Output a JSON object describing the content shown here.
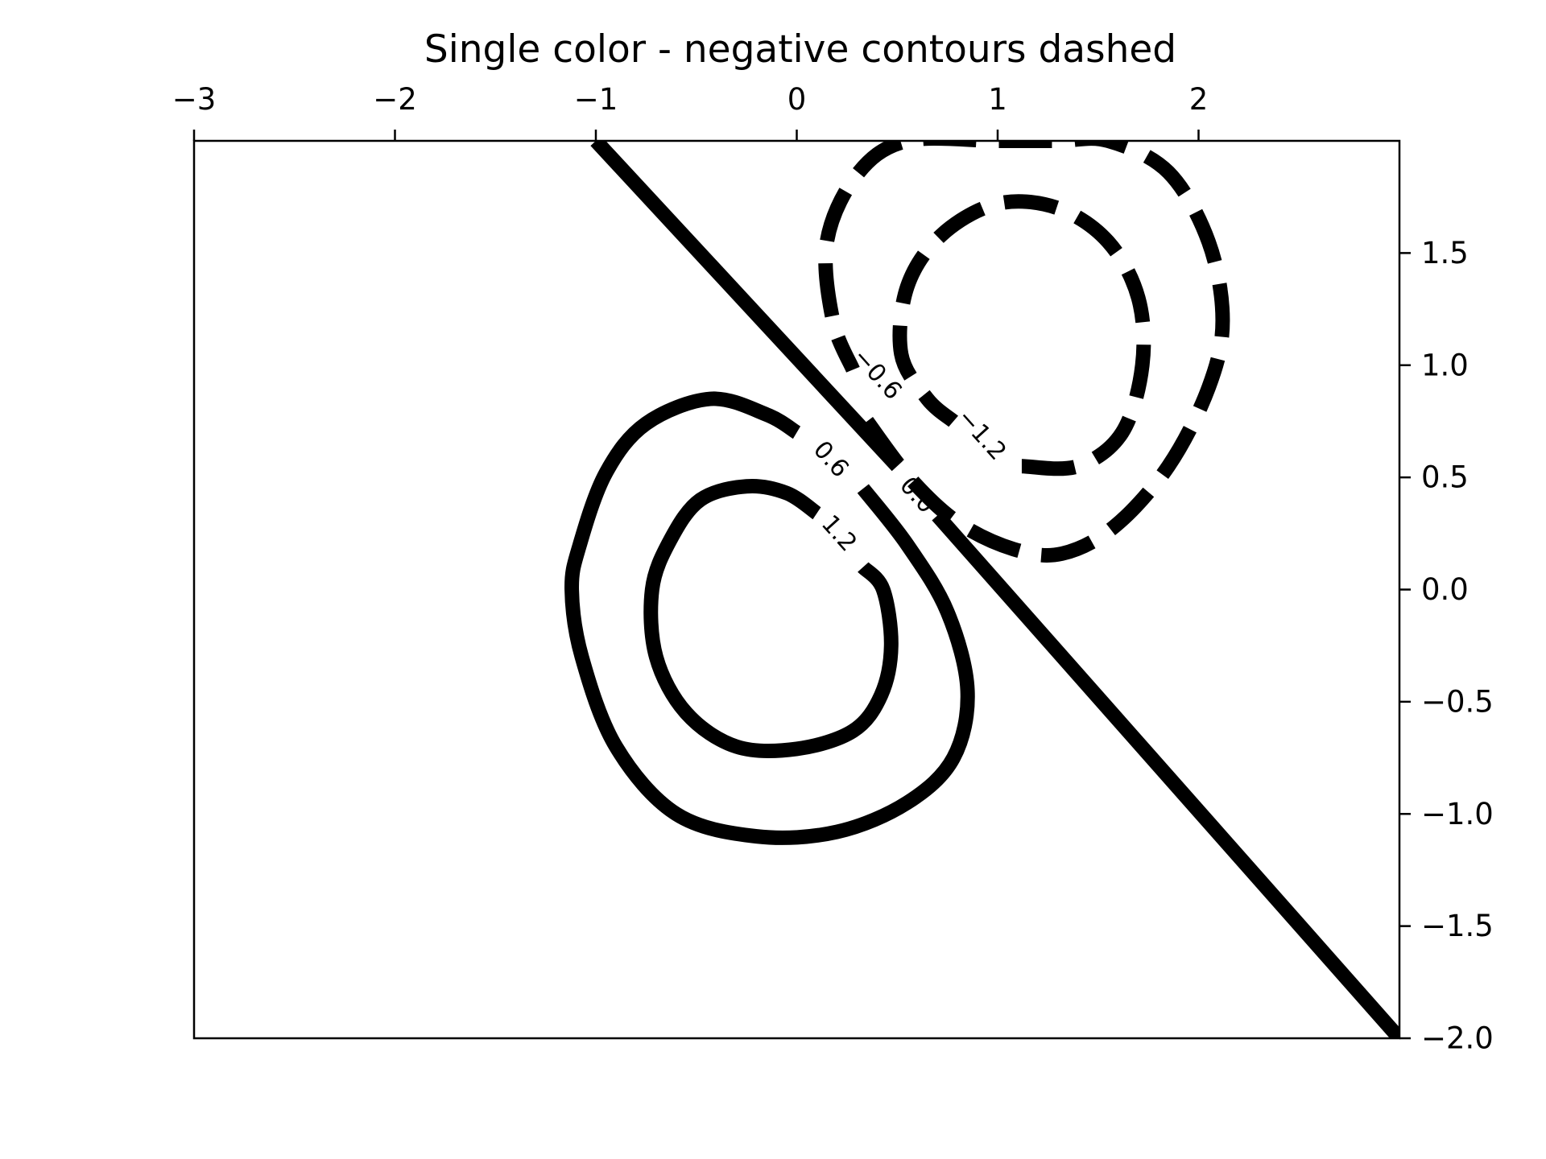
{
  "chart_data": {
    "type": "contour",
    "title": "Single color - negative contours dashed",
    "xlabel": "",
    "ylabel": "",
    "xlim": [
      -3,
      3
    ],
    "ylim": [
      -2,
      2
    ],
    "x_axis_position": "top",
    "y_axis_position": "right",
    "tick_direction": "in",
    "grid": false,
    "legend": "none",
    "line_color": "#000000",
    "negative_linestyle": "dashed",
    "x_ticks": [
      {
        "value": -3,
        "label": "−3"
      },
      {
        "value": -2,
        "label": "−2"
      },
      {
        "value": -1,
        "label": "−1"
      },
      {
        "value": 0,
        "label": "0"
      },
      {
        "value": 1,
        "label": "1"
      },
      {
        "value": 2,
        "label": "2"
      }
    ],
    "y_ticks": [
      {
        "value": 1.5,
        "label": "1.5"
      },
      {
        "value": 1.0,
        "label": "1.0"
      },
      {
        "value": 0.5,
        "label": "0.5"
      },
      {
        "value": 0.0,
        "label": "0.0"
      },
      {
        "value": -0.5,
        "label": "−0.5"
      },
      {
        "value": -1.0,
        "label": "−1.0"
      },
      {
        "value": -1.5,
        "label": "−1.5"
      },
      {
        "value": -2.0,
        "label": "−2.0"
      }
    ],
    "levels": [
      {
        "level": 0.0,
        "label": "0.0",
        "linestyle": "solid",
        "label_at": [
          0.6,
          0.42
        ],
        "segments": [
          [
            [
              -1.0,
              2.0
            ],
            [
              0.5,
              0.55
            ]
          ],
          [
            [
              0.7,
              0.33
            ],
            [
              3.0,
              -2.0
            ]
          ]
        ]
      },
      {
        "level": 0.6,
        "label": "0.6",
        "linestyle": "solid",
        "label_at": [
          0.17,
          0.58
        ],
        "segments": [
          [
            [
              0.0,
              0.7
            ],
            [
              -0.15,
              0.78
            ],
            [
              -0.43,
              0.85
            ],
            [
              -0.75,
              0.74
            ],
            [
              -0.95,
              0.52
            ],
            [
              -1.08,
              0.2
            ],
            [
              -1.12,
              0.0
            ],
            [
              -1.07,
              -0.3
            ],
            [
              -0.9,
              -0.7
            ],
            [
              -0.6,
              -1.0
            ],
            [
              -0.2,
              -1.1
            ],
            [
              0.2,
              -1.08
            ],
            [
              0.55,
              -0.95
            ],
            [
              0.78,
              -0.75
            ],
            [
              0.85,
              -0.45
            ],
            [
              0.75,
              -0.1
            ],
            [
              0.55,
              0.2
            ],
            [
              0.33,
              0.45
            ]
          ]
        ]
      },
      {
        "level": 1.2,
        "label": "1.2",
        "linestyle": "solid",
        "label_at": [
          0.21,
          0.25
        ],
        "segments": [
          [
            [
              0.1,
              0.34
            ],
            [
              -0.05,
              0.43
            ],
            [
              -0.25,
              0.46
            ],
            [
              -0.48,
              0.4
            ],
            [
              -0.63,
              0.22
            ],
            [
              -0.72,
              0.0
            ],
            [
              -0.7,
              -0.3
            ],
            [
              -0.55,
              -0.55
            ],
            [
              -0.3,
              -0.7
            ],
            [
              0.0,
              -0.71
            ],
            [
              0.28,
              -0.63
            ],
            [
              0.42,
              -0.47
            ],
            [
              0.47,
              -0.25
            ],
            [
              0.43,
              0.0
            ],
            [
              0.33,
              0.1
            ]
          ]
        ]
      },
      {
        "level": -0.6,
        "label": "−0.6",
        "linestyle": "dashed",
        "label_at": [
          0.4,
          0.96
        ],
        "segments": [
          [
            [
              0.35,
              0.75
            ],
            [
              0.56,
              0.5
            ],
            [
              0.8,
              0.3
            ],
            [
              1.08,
              0.18
            ],
            [
              1.32,
              0.16
            ],
            [
              1.58,
              0.28
            ],
            [
              1.85,
              0.55
            ],
            [
              2.05,
              0.9
            ],
            [
              2.12,
              1.2
            ],
            [
              2.05,
              1.55
            ],
            [
              1.85,
              1.86
            ],
            [
              1.55,
              2.0
            ],
            [
              1.3,
              2.0
            ],
            [
              1.0,
              2.0
            ],
            [
              0.55,
              2.0
            ],
            [
              0.3,
              1.85
            ],
            [
              0.15,
              1.55
            ],
            [
              0.18,
              1.2
            ],
            [
              0.28,
              0.98
            ]
          ]
        ]
      },
      {
        "level": -1.2,
        "label": "−1.2",
        "linestyle": "dashed",
        "label_at": [
          0.92,
          0.69
        ],
        "segments": [
          [
            [
              1.12,
              0.55
            ],
            [
              1.4,
              0.55
            ],
            [
              1.62,
              0.7
            ],
            [
              1.72,
              1.0
            ],
            [
              1.7,
              1.3
            ],
            [
              1.55,
              1.55
            ],
            [
              1.3,
              1.7
            ],
            [
              1.0,
              1.72
            ],
            [
              0.72,
              1.58
            ],
            [
              0.55,
              1.35
            ],
            [
              0.52,
              1.05
            ],
            [
              0.65,
              0.85
            ],
            [
              0.78,
              0.75
            ]
          ]
        ]
      }
    ]
  }
}
